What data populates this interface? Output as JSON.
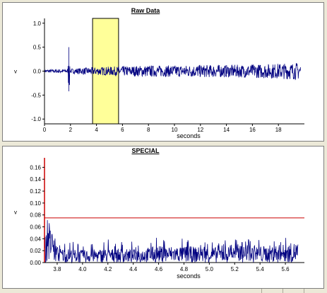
{
  "colors": {
    "signal": "#000080",
    "highlight": "#ffff99",
    "threshold": "#cc0000",
    "axis": "#000000",
    "background": "#ffffff"
  },
  "chart_data": [
    {
      "type": "line",
      "title": "Raw Data",
      "xlabel": "seconds",
      "ylabel": "v",
      "xlim": [
        0,
        20
      ],
      "ylim": [
        -1.1,
        1.1
      ],
      "x_ticks": [
        "0",
        "2",
        "4",
        "6",
        "8",
        "10",
        "12",
        "14",
        "16",
        "18"
      ],
      "x_tick_values": [
        0,
        2,
        4,
        6,
        8,
        10,
        12,
        14,
        16,
        18
      ],
      "y_ticks": [
        "1.0",
        "0.5",
        "0.0",
        "-0.5",
        "-1.0"
      ],
      "y_tick_values": [
        1.0,
        0.5,
        0.0,
        -0.5,
        -1.0
      ],
      "highlight_region": [
        3.7,
        5.7
      ],
      "series": [
        {
          "x": [
            0,
            1,
            1.8,
            1.85,
            1.9,
            2.0,
            3,
            3.7,
            5.7,
            8,
            10,
            12,
            14,
            16,
            18,
            19.7
          ],
          "envelope": [
            0.03,
            0.04,
            0.05,
            0.42,
            -0.4,
            0.05,
            0.07,
            0.08,
            0.1,
            0.12,
            0.12,
            0.13,
            0.13,
            0.14,
            0.16,
            0.18
          ]
        }
      ],
      "grid": false
    },
    {
      "type": "line",
      "title": "SPECIAL",
      "xlabel": "seconds",
      "ylabel": "v",
      "xlim": [
        3.7,
        5.75
      ],
      "ylim": [
        0,
        0.17
      ],
      "x_ticks": [
        "3.8",
        "4.0",
        "4.2",
        "4.4",
        "4.6",
        "4.8",
        "5.0",
        "5.2",
        "5.4",
        "5.6"
      ],
      "x_tick_values": [
        3.8,
        4.0,
        4.2,
        4.4,
        4.6,
        4.8,
        5.0,
        5.2,
        5.4,
        5.6
      ],
      "y_ticks": [
        "0.16",
        "0.14",
        "0.12",
        "0.10",
        "0.08",
        "0.06",
        "0.04",
        "0.02",
        "0.00"
      ],
      "y_tick_values": [
        0.16,
        0.14,
        0.12,
        0.1,
        0.08,
        0.06,
        0.04,
        0.02,
        0.0
      ],
      "threshold": 0.075,
      "series": [
        {
          "x": [
            3.7,
            3.72,
            3.8,
            4.0,
            4.2,
            4.4,
            4.6,
            4.8,
            5.0,
            5.2,
            5.4,
            5.6,
            5.7
          ],
          "typical": [
            0.02,
            0.06,
            0.018,
            0.015,
            0.017,
            0.016,
            0.02,
            0.02,
            0.018,
            0.02,
            0.02,
            0.022,
            0.025
          ],
          "peak": [
            0.03,
            0.065,
            0.035,
            0.035,
            0.04,
            0.035,
            0.045,
            0.04,
            0.035,
            0.04,
            0.04,
            0.05,
            0.05
          ]
        }
      ],
      "grid": false
    }
  ]
}
